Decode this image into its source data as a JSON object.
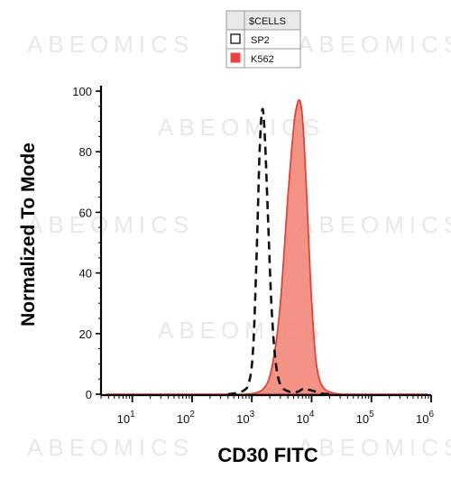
{
  "chart_data": {
    "type": "area",
    "xscale": "log",
    "xlim": [
      3,
      1000000
    ],
    "ylim": [
      0,
      100
    ],
    "xlabel": "CD30 FITC",
    "ylabel": "Normalized To Mode",
    "grid": false,
    "legend": {
      "header": "$CELLS",
      "placement": "top",
      "entries": [
        "SP2",
        "K562"
      ]
    },
    "y_ticks": [
      "0",
      "20",
      "40",
      "60",
      "80",
      "100"
    ],
    "y_tick_values": [
      0,
      20,
      40,
      60,
      80,
      100
    ],
    "x_ticks": [
      {
        "base": "10",
        "exp": "1",
        "value": 10
      },
      {
        "base": "10",
        "exp": "2",
        "value": 100
      },
      {
        "base": "10",
        "exp": "3",
        "value": 1000
      },
      {
        "base": "10",
        "exp": "4",
        "value": 10000
      },
      {
        "base": "10",
        "exp": "5",
        "value": 100000
      },
      {
        "base": "10",
        "exp": "6",
        "value": 1000000
      }
    ],
    "series": [
      {
        "name": "SP2",
        "style": "dashed",
        "color": "#111111",
        "x": [
          400,
          700,
          900,
          1050,
          1200,
          1350,
          1500,
          1650,
          1850,
          2100,
          2400,
          2800,
          3300,
          4000,
          5000,
          6200,
          7500,
          9000,
          11000,
          14000,
          20000
        ],
        "y": [
          0,
          1,
          4,
          15,
          45,
          80,
          94,
          85,
          60,
          32,
          14,
          5,
          2,
          1,
          0.5,
          1,
          2,
          1.5,
          1,
          0.3,
          0
        ]
      },
      {
        "name": "K562",
        "style": "filled",
        "color": "#f08070",
        "edge": "#e0443a",
        "x": [
          800,
          1200,
          1600,
          2000,
          2500,
          3000,
          3500,
          4000,
          4600,
          5200,
          5800,
          6300,
          6800,
          7400,
          8200,
          9200,
          10500,
          12000,
          14000,
          17000,
          22000,
          30000
        ],
        "y": [
          0,
          0.5,
          2,
          6,
          16,
          30,
          48,
          65,
          80,
          91,
          96,
          97,
          94,
          85,
          68,
          45,
          24,
          10,
          4,
          1.5,
          0.5,
          0
        ]
      }
    ],
    "watermark": "ABEOMICS"
  }
}
